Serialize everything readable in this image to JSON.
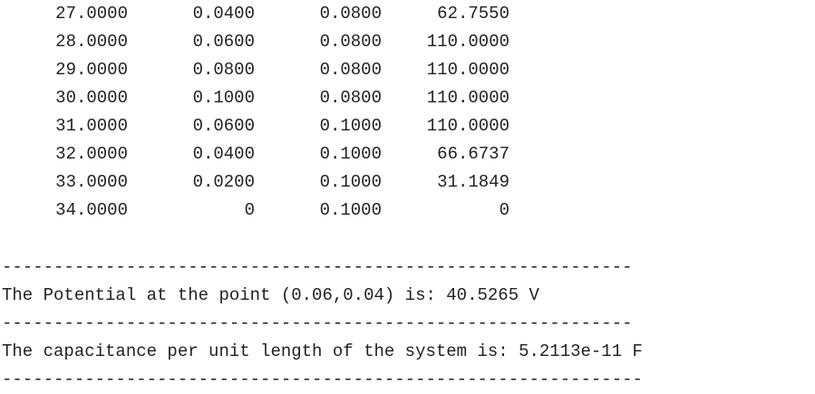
{
  "table": {
    "rows": [
      [
        "27.0000",
        "0.0400",
        "0.0800",
        "62.7550"
      ],
      [
        "28.0000",
        "0.0600",
        "0.0800",
        "110.0000"
      ],
      [
        "29.0000",
        "0.0800",
        "0.0800",
        "110.0000"
      ],
      [
        "30.0000",
        "0.1000",
        "0.0800",
        "110.0000"
      ],
      [
        "31.0000",
        "0.0600",
        "0.1000",
        "110.0000"
      ],
      [
        "32.0000",
        "0.0400",
        "0.1000",
        "66.6737"
      ],
      [
        "33.0000",
        "0.0200",
        "0.1000",
        "31.1849"
      ],
      [
        "34.0000",
        "0",
        "0.1000",
        "0"
      ]
    ]
  },
  "output": {
    "separator_1": "-------------------------------------------------------------",
    "potential_text": "The Potential at the point (0.06,0.04) is: 40.5265 V",
    "separator_2": "-------------------------------------------------------------",
    "capacitance_text": "The capacitance per unit length of the system is: 5.2113e-11 F",
    "separator_3": "--------------------------------------------------------------"
  }
}
